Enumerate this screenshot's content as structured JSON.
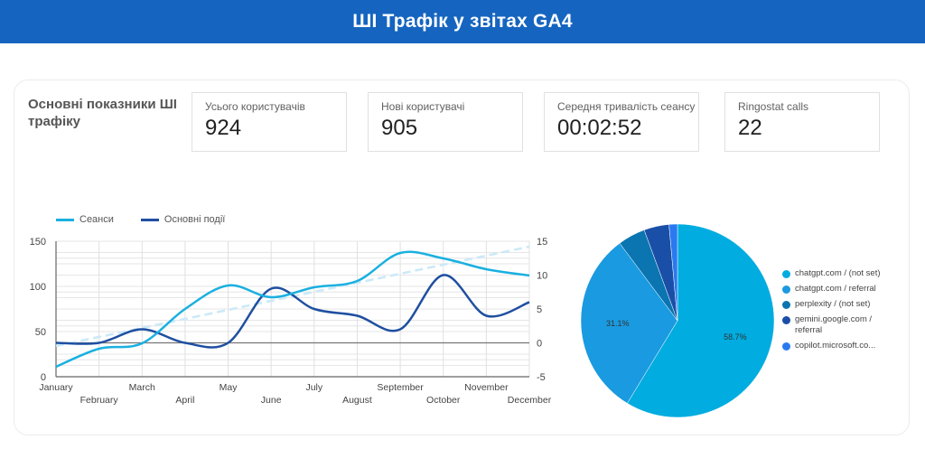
{
  "header": {
    "title": "ШІ Трафік у звітах GA4"
  },
  "section": {
    "title": "Основні показники ШІ трафіку"
  },
  "kpis": [
    {
      "label": "Усього користувачів",
      "value": "924"
    },
    {
      "label": "Нові користувачі",
      "value": "905"
    },
    {
      "label": "Середня тривалість сеансу",
      "value": "00:02:52"
    },
    {
      "label": "Ringostat calls",
      "value": "22"
    }
  ],
  "colors": {
    "header_bg": "#1565c0",
    "sessions": "#1ab0e0",
    "key_events": "#1f4fa0",
    "trend": "#cbe9f8"
  },
  "line_legend": {
    "sessions": "Сеанси",
    "key_events": "Основні події"
  },
  "pie_legend": [
    {
      "label": "chatgpt.com / (not set)",
      "color": "#00ace0"
    },
    {
      "label": "chatgpt.com / referral",
      "color": "#1a9ae0"
    },
    {
      "label": "perplexity / (not set)",
      "color": "#0a75b0"
    },
    {
      "label": "gemini.google.com / referral",
      "color": "#1a4fa8"
    },
    {
      "label": "copilot.microsoft.co...",
      "color": "#2979f0"
    }
  ],
  "chart_data": [
    {
      "type": "line",
      "title": "",
      "x": [
        "January",
        "February",
        "March",
        "April",
        "May",
        "June",
        "July",
        "August",
        "September",
        "October",
        "November",
        "December"
      ],
      "series": [
        {
          "name": "Сеанси",
          "axis": "left",
          "values": [
            11,
            31,
            37,
            75,
            101,
            88,
            99,
            106,
            137,
            131,
            119,
            112
          ]
        },
        {
          "name": "Основні події",
          "axis": "right",
          "values": [
            0,
            0,
            2,
            0,
            0,
            8,
            5,
            4,
            2,
            10,
            4,
            6
          ]
        },
        {
          "name": "Сеанси trend",
          "axis": "left",
          "style": "dashed",
          "values": [
            34,
            144
          ]
        }
      ],
      "left_axis": {
        "ticks": [
          0,
          50,
          100,
          150
        ],
        "ylim": [
          0,
          150
        ]
      },
      "right_axis": {
        "ticks": [
          -5,
          0,
          5,
          10,
          15
        ],
        "ylim": [
          -5,
          15
        ]
      },
      "legend_position": "top",
      "grid": true
    },
    {
      "type": "pie",
      "title": "",
      "labels": [
        "chatgpt.com / (not set)",
        "chatgpt.com / referral",
        "perplexity / (not set)",
        "gemini.google.com / referral",
        "copilot.microsoft.com / referral"
      ],
      "values": [
        58.7,
        31.1,
        4.6,
        4.2,
        1.4
      ],
      "data_labels": [
        "58.7%",
        "31.1%"
      ],
      "legend_position": "right"
    }
  ]
}
